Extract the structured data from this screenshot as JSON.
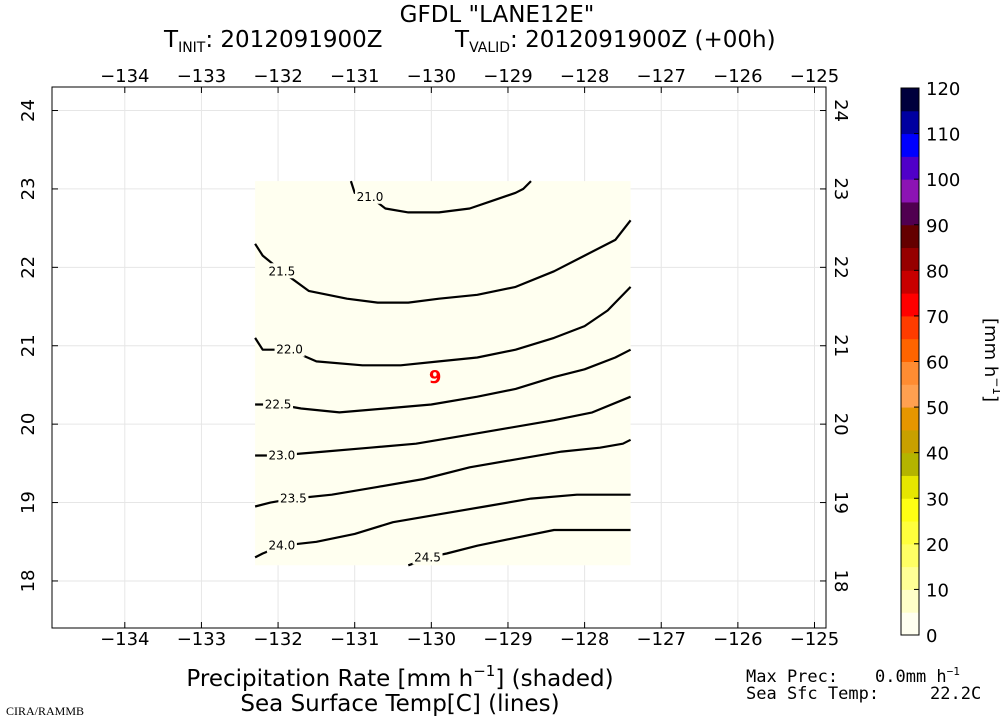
{
  "header": {
    "model_line": "GFDL \"LANE12E\"",
    "init_label": "T",
    "init_sub": "INIT",
    "init_value": ": 2012091900Z",
    "valid_label": "T",
    "valid_sub": "VALID",
    "valid_value": ": 2012091900Z (+00h)"
  },
  "map": {
    "lon_ticks": [
      "−134",
      "−133",
      "−132",
      "−131",
      "−130",
      "−129",
      "−128",
      "−127",
      "−126",
      "−125"
    ],
    "lon_values": [
      -134,
      -133,
      -132,
      -131,
      -130,
      -129,
      -128,
      -127,
      -126,
      -125
    ],
    "lat_ticks": [
      "24",
      "23",
      "22",
      "21",
      "20",
      "19",
      "18"
    ],
    "lat_values": [
      24,
      23,
      22,
      21,
      20,
      19,
      18
    ],
    "lon_range": [
      -134.95,
      -124.85
    ],
    "lat_range": [
      17.4,
      24.3
    ],
    "domain": {
      "lon_min": -132.3,
      "lon_max": -127.4,
      "lat_min": 18.2,
      "lat_max": 23.1
    },
    "storm_symbol": "9",
    "storm_position": {
      "lon": -129.95,
      "lat": 20.6
    },
    "contours": [
      {
        "label": "21.0",
        "label_at": {
          "lon": -130.8,
          "lat": 22.9
        },
        "points": [
          [
            -131.05,
            23.1
          ],
          [
            -131.0,
            22.95
          ],
          [
            -130.8,
            22.9
          ],
          [
            -130.6,
            22.75
          ],
          [
            -130.3,
            22.7
          ],
          [
            -129.9,
            22.7
          ],
          [
            -129.5,
            22.75
          ],
          [
            -129.2,
            22.85
          ],
          [
            -128.9,
            22.95
          ],
          [
            -128.8,
            23.0
          ],
          [
            -128.7,
            23.1
          ]
        ]
      },
      {
        "label": "21.5",
        "label_at": {
          "lon": -131.95,
          "lat": 21.95
        },
        "points": [
          [
            -132.3,
            22.3
          ],
          [
            -132.2,
            22.15
          ],
          [
            -131.95,
            21.95
          ],
          [
            -131.6,
            21.7
          ],
          [
            -131.1,
            21.6
          ],
          [
            -130.7,
            21.55
          ],
          [
            -130.3,
            21.55
          ],
          [
            -129.9,
            21.6
          ],
          [
            -129.4,
            21.65
          ],
          [
            -128.9,
            21.75
          ],
          [
            -128.4,
            21.95
          ],
          [
            -128.0,
            22.15
          ],
          [
            -127.6,
            22.35
          ],
          [
            -127.4,
            22.6
          ]
        ]
      },
      {
        "label": "22.0",
        "label_at": {
          "lon": -131.85,
          "lat": 20.95
        },
        "points": [
          [
            -132.3,
            21.1
          ],
          [
            -132.2,
            20.95
          ],
          [
            -131.85,
            20.95
          ],
          [
            -131.5,
            20.8
          ],
          [
            -130.9,
            20.75
          ],
          [
            -130.4,
            20.75
          ],
          [
            -129.9,
            20.8
          ],
          [
            -129.4,
            20.85
          ],
          [
            -128.9,
            20.95
          ],
          [
            -128.4,
            21.1
          ],
          [
            -128.0,
            21.25
          ],
          [
            -127.7,
            21.45
          ],
          [
            -127.4,
            21.75
          ]
        ]
      },
      {
        "label": "22.5",
        "label_at": {
          "lon": -132.0,
          "lat": 20.25
        },
        "points": [
          [
            -132.3,
            20.25
          ],
          [
            -132.15,
            20.25
          ],
          [
            -132.0,
            20.25
          ],
          [
            -131.7,
            20.2
          ],
          [
            -131.2,
            20.15
          ],
          [
            -130.6,
            20.2
          ],
          [
            -130.0,
            20.25
          ],
          [
            -129.4,
            20.35
          ],
          [
            -128.9,
            20.45
          ],
          [
            -128.4,
            20.6
          ],
          [
            -128.0,
            20.7
          ],
          [
            -127.6,
            20.85
          ],
          [
            -127.4,
            20.95
          ]
        ]
      },
      {
        "label": "23.0",
        "label_at": {
          "lon": -131.95,
          "lat": 19.6
        },
        "points": [
          [
            -132.3,
            19.6
          ],
          [
            -132.0,
            19.6
          ],
          [
            -131.4,
            19.65
          ],
          [
            -130.8,
            19.7
          ],
          [
            -130.2,
            19.75
          ],
          [
            -129.6,
            19.85
          ],
          [
            -129.0,
            19.95
          ],
          [
            -128.4,
            20.05
          ],
          [
            -127.9,
            20.15
          ],
          [
            -127.4,
            20.35
          ]
        ]
      },
      {
        "label": "23.5",
        "label_at": {
          "lon": -131.8,
          "lat": 19.05
        },
        "points": [
          [
            -132.3,
            18.95
          ],
          [
            -132.1,
            19.0
          ],
          [
            -131.8,
            19.05
          ],
          [
            -131.3,
            19.1
          ],
          [
            -130.7,
            19.2
          ],
          [
            -130.1,
            19.3
          ],
          [
            -129.5,
            19.45
          ],
          [
            -128.9,
            19.55
          ],
          [
            -128.3,
            19.65
          ],
          [
            -127.8,
            19.7
          ],
          [
            -127.5,
            19.75
          ],
          [
            -127.4,
            19.8
          ]
        ]
      },
      {
        "label": "24.0",
        "label_at": {
          "lon": -131.95,
          "lat": 18.45
        },
        "points": [
          [
            -132.3,
            18.3
          ],
          [
            -132.2,
            18.35
          ],
          [
            -131.95,
            18.45
          ],
          [
            -131.5,
            18.5
          ],
          [
            -131.0,
            18.6
          ],
          [
            -130.5,
            18.75
          ],
          [
            -129.9,
            18.85
          ],
          [
            -129.3,
            18.95
          ],
          [
            -128.7,
            19.05
          ],
          [
            -128.1,
            19.1
          ],
          [
            -127.6,
            19.1
          ],
          [
            -127.4,
            19.1
          ]
        ]
      },
      {
        "label": "24.5",
        "label_at": {
          "lon": -130.05,
          "lat": 18.3
        },
        "points": [
          [
            -130.3,
            18.2
          ],
          [
            -130.15,
            18.25
          ],
          [
            -130.05,
            18.3
          ],
          [
            -129.8,
            18.35
          ],
          [
            -129.4,
            18.45
          ],
          [
            -128.9,
            18.55
          ],
          [
            -128.4,
            18.65
          ],
          [
            -128.0,
            18.65
          ],
          [
            -127.6,
            18.65
          ],
          [
            -127.4,
            18.65
          ]
        ]
      }
    ]
  },
  "colorbar": {
    "tick_labels": [
      "120",
      "110",
      "100",
      "90",
      "80",
      "70",
      "60",
      "50",
      "40",
      "30",
      "20",
      "10",
      "0"
    ],
    "tick_values": [
      120,
      110,
      100,
      90,
      80,
      70,
      60,
      50,
      40,
      30,
      20,
      10,
      0
    ],
    "range": [
      0,
      120
    ],
    "unit_prefix": "[mm h",
    "unit_sup": "−1",
    "unit_suffix": "]",
    "colors": [
      {
        "from": 0,
        "to": 5,
        "color": "#fffff0"
      },
      {
        "from": 5,
        "to": 10,
        "color": "#ffffc8"
      },
      {
        "from": 10,
        "to": 15,
        "color": "#ffff96"
      },
      {
        "from": 15,
        "to": 20,
        "color": "#ffff64"
      },
      {
        "from": 20,
        "to": 25,
        "color": "#ffff3c"
      },
      {
        "from": 25,
        "to": 30,
        "color": "#ffff14"
      },
      {
        "from": 30,
        "to": 35,
        "color": "#e6e600"
      },
      {
        "from": 35,
        "to": 40,
        "color": "#b4b400"
      },
      {
        "from": 40,
        "to": 45,
        "color": "#c8a000"
      },
      {
        "from": 45,
        "to": 50,
        "color": "#e69600"
      },
      {
        "from": 50,
        "to": 55,
        "color": "#ffa050"
      },
      {
        "from": 55,
        "to": 60,
        "color": "#ff8c32"
      },
      {
        "from": 60,
        "to": 65,
        "color": "#ff6400"
      },
      {
        "from": 65,
        "to": 70,
        "color": "#ff3c00"
      },
      {
        "from": 70,
        "to": 75,
        "color": "#ff0000"
      },
      {
        "from": 75,
        "to": 80,
        "color": "#c80000"
      },
      {
        "from": 80,
        "to": 85,
        "color": "#960000"
      },
      {
        "from": 85,
        "to": 90,
        "color": "#640000"
      },
      {
        "from": 90,
        "to": 95,
        "color": "#500050"
      },
      {
        "from": 95,
        "to": 100,
        "color": "#8c14b4"
      },
      {
        "from": 100,
        "to": 105,
        "color": "#5000c8"
      },
      {
        "from": 105,
        "to": 110,
        "color": "#0000ff"
      },
      {
        "from": 110,
        "to": 115,
        "color": "#0000a0"
      },
      {
        "from": 115,
        "to": 120,
        "color": "#00003c"
      }
    ]
  },
  "footer": {
    "line1_prefix": "Precipitation Rate [mm h",
    "line1_sup": "−1",
    "line1_suffix": "] (shaded)",
    "line2": "Sea Surface Temp[C] (lines)",
    "max_prec_label": "Max Prec:",
    "max_prec_value": "0.0mm h",
    "max_prec_sup": "−1",
    "sst_label": "Sea Sfc Temp:",
    "sst_value": "22.2C",
    "credit": "CIRA/RAMMB"
  },
  "colors": {
    "domain_fill": "#fffff0",
    "grid": "#e6e6e6",
    "contour": "#000000",
    "storm": "#ff0000"
  }
}
